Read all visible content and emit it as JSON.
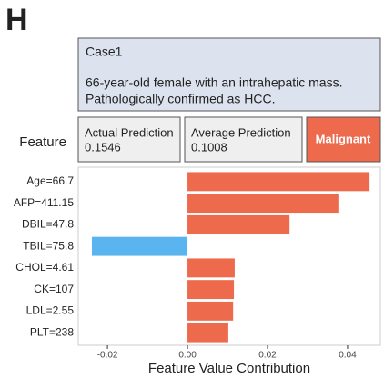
{
  "chart_data": {
    "type": "hbar",
    "panel_label": "H",
    "case": {
      "title": "Case1",
      "lines": [
        "66-year-old female with an intrahepatic mass.",
        "Pathologically confirmed as HCC."
      ]
    },
    "predictions": [
      {
        "label": "Actual Prediction",
        "value": 0.1546
      },
      {
        "label": "Average Prediction",
        "value": 0.1008
      }
    ],
    "prediction_class": "Malignant",
    "ylabel": "Feature",
    "xlabel": "Feature Value Contribution",
    "categories": [
      "Age=66.7",
      "AFP=411.15",
      "DBIL=47.8",
      "TBIL=75.8",
      "CHOL=4.61",
      "CK=107",
      "LDL=2.55",
      "PLT=238"
    ],
    "values": [
      0.0455,
      0.0377,
      0.0255,
      -0.0239,
      0.0118,
      0.0116,
      0.0114,
      0.0102
    ],
    "positive_color": "#ee6a4d",
    "negative_color": "#5ab4f0",
    "xlim": [
      -0.0273,
      0.0482
    ],
    "xticks": [
      -0.02,
      {
        "value": 0,
        "label": "0.00"
      },
      0.02,
      0.04
    ]
  }
}
